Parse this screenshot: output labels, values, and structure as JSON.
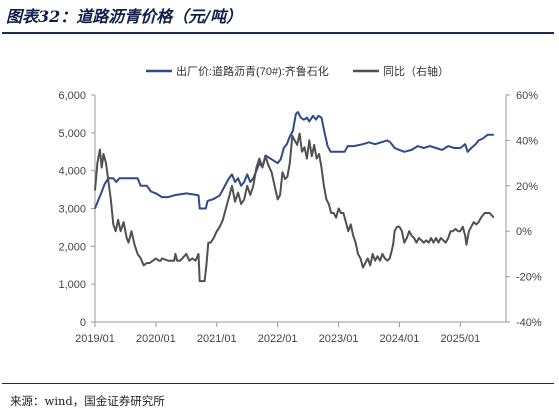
{
  "title": "图表32：道路沥青价格（元/吨）",
  "source": "来源：wind，国金证券研究所",
  "chart_data": {
    "type": "line",
    "title": "图表32：道路沥青价格（元/吨）",
    "xlabel": "",
    "ylabel": "",
    "y2label": "",
    "x_ticks": [
      "2019/01",
      "2020/01",
      "2021/01",
      "2022/01",
      "2023/01",
      "2024/01",
      "2025/01"
    ],
    "x_range": [
      2019.0,
      2025.75
    ],
    "ylim": [
      0,
      6000
    ],
    "y_ticks": [
      "0",
      "1,000",
      "2,000",
      "3,000",
      "4,000",
      "5,000",
      "6,000"
    ],
    "y2lim": [
      -40,
      60
    ],
    "y2_ticks": [
      "-40%",
      "-20%",
      "0%",
      "20%",
      "40%",
      "60%"
    ],
    "grid": false,
    "legend_position": "top",
    "series": [
      {
        "name": "出厂价:道路沥青(70#):齐鲁石化",
        "axis": "left",
        "color": "#2e4a8b",
        "points": [
          [
            2019.0,
            3000
          ],
          [
            2019.05,
            3200
          ],
          [
            2019.1,
            3400
          ],
          [
            2019.16,
            3650
          ],
          [
            2019.22,
            3800
          ],
          [
            2019.3,
            3800
          ],
          [
            2019.35,
            3700
          ],
          [
            2019.4,
            3800
          ],
          [
            2019.6,
            3800
          ],
          [
            2019.7,
            3800
          ],
          [
            2019.75,
            3600
          ],
          [
            2019.85,
            3600
          ],
          [
            2019.92,
            3450
          ],
          [
            2020.0,
            3400
          ],
          [
            2020.1,
            3300
          ],
          [
            2020.2,
            3300
          ],
          [
            2020.3,
            3350
          ],
          [
            2020.5,
            3400
          ],
          [
            2020.7,
            3350
          ],
          [
            2020.72,
            3000
          ],
          [
            2020.82,
            3000
          ],
          [
            2020.85,
            3200
          ],
          [
            2020.95,
            3250
          ],
          [
            2021.05,
            3350
          ],
          [
            2021.1,
            3500
          ],
          [
            2021.15,
            3650
          ],
          [
            2021.2,
            3800
          ],
          [
            2021.25,
            3900
          ],
          [
            2021.3,
            3700
          ],
          [
            2021.35,
            3800
          ],
          [
            2021.4,
            3600
          ],
          [
            2021.45,
            3700
          ],
          [
            2021.5,
            3900
          ],
          [
            2021.55,
            3700
          ],
          [
            2021.6,
            3800
          ],
          [
            2021.65,
            4000
          ],
          [
            2021.7,
            4200
          ],
          [
            2021.75,
            4100
          ],
          [
            2021.8,
            4400
          ],
          [
            2021.9,
            4300
          ],
          [
            2022.0,
            4200
          ],
          [
            2022.05,
            4300
          ],
          [
            2022.1,
            4600
          ],
          [
            2022.15,
            4700
          ],
          [
            2022.2,
            4900
          ],
          [
            2022.25,
            5050
          ],
          [
            2022.3,
            5500
          ],
          [
            2022.33,
            5550
          ],
          [
            2022.38,
            5400
          ],
          [
            2022.43,
            5350
          ],
          [
            2022.48,
            5400
          ],
          [
            2022.52,
            5300
          ],
          [
            2022.58,
            5450
          ],
          [
            2022.63,
            5350
          ],
          [
            2022.67,
            5450
          ],
          [
            2022.72,
            5400
          ],
          [
            2022.77,
            5000
          ],
          [
            2022.82,
            4650
          ],
          [
            2022.87,
            4500
          ],
          [
            2022.92,
            4500
          ],
          [
            2023.0,
            4500
          ],
          [
            2023.1,
            4500
          ],
          [
            2023.15,
            4650
          ],
          [
            2023.25,
            4650
          ],
          [
            2023.4,
            4700
          ],
          [
            2023.5,
            4750
          ],
          [
            2023.6,
            4700
          ],
          [
            2023.7,
            4750
          ],
          [
            2023.8,
            4800
          ],
          [
            2023.85,
            4750
          ],
          [
            2023.92,
            4600
          ],
          [
            2024.0,
            4550
          ],
          [
            2024.08,
            4500
          ],
          [
            2024.2,
            4550
          ],
          [
            2024.3,
            4650
          ],
          [
            2024.4,
            4600
          ],
          [
            2024.5,
            4650
          ],
          [
            2024.6,
            4600
          ],
          [
            2024.7,
            4550
          ],
          [
            2024.8,
            4650
          ],
          [
            2024.9,
            4600
          ],
          [
            2025.0,
            4600
          ],
          [
            2025.08,
            4700
          ],
          [
            2025.12,
            4500
          ],
          [
            2025.18,
            4600
          ],
          [
            2025.25,
            4700
          ],
          [
            2025.3,
            4800
          ],
          [
            2025.37,
            4850
          ],
          [
            2025.45,
            4950
          ],
          [
            2025.55,
            4950
          ]
        ]
      },
      {
        "name": "同比（右轴）",
        "axis": "right",
        "color": "#505050",
        "points": [
          [
            2019.0,
            18
          ],
          [
            2019.04,
            30
          ],
          [
            2019.08,
            36
          ],
          [
            2019.11,
            28
          ],
          [
            2019.14,
            34
          ],
          [
            2019.18,
            30
          ],
          [
            2019.22,
            22
          ],
          [
            2019.26,
            14
          ],
          [
            2019.3,
            3
          ],
          [
            2019.34,
            0
          ],
          [
            2019.38,
            5
          ],
          [
            2019.42,
            0
          ],
          [
            2019.47,
            4
          ],
          [
            2019.52,
            -3
          ],
          [
            2019.55,
            -5
          ],
          [
            2019.6,
            0
          ],
          [
            2019.65,
            -6
          ],
          [
            2019.7,
            -10
          ],
          [
            2019.75,
            -12
          ],
          [
            2019.8,
            -15
          ],
          [
            2019.85,
            -14
          ],
          [
            2019.9,
            -14
          ],
          [
            2019.95,
            -13
          ],
          [
            2020.0,
            -12
          ],
          [
            2020.05,
            -13
          ],
          [
            2020.08,
            -13
          ],
          [
            2020.1,
            -12
          ],
          [
            2020.2,
            -13
          ],
          [
            2020.3,
            -13
          ],
          [
            2020.32,
            -10
          ],
          [
            2020.35,
            -13
          ],
          [
            2020.4,
            -13
          ],
          [
            2020.5,
            -10
          ],
          [
            2020.55,
            -13
          ],
          [
            2020.6,
            -12
          ],
          [
            2020.65,
            -13
          ],
          [
            2020.7,
            -10
          ],
          [
            2020.72,
            -22
          ],
          [
            2020.8,
            -22
          ],
          [
            2020.83,
            -15
          ],
          [
            2020.86,
            -5
          ],
          [
            2020.9,
            -5
          ],
          [
            2020.95,
            -3
          ],
          [
            2021.0,
            0
          ],
          [
            2021.05,
            2
          ],
          [
            2021.1,
            5
          ],
          [
            2021.15,
            10
          ],
          [
            2021.2,
            15
          ],
          [
            2021.25,
            20
          ],
          [
            2021.3,
            13
          ],
          [
            2021.35,
            17
          ],
          [
            2021.4,
            12
          ],
          [
            2021.45,
            14
          ],
          [
            2021.5,
            20
          ],
          [
            2021.55,
            16
          ],
          [
            2021.6,
            20
          ],
          [
            2021.65,
            28
          ],
          [
            2021.7,
            32
          ],
          [
            2021.75,
            28
          ],
          [
            2021.8,
            33
          ],
          [
            2021.85,
            29
          ],
          [
            2021.9,
            26
          ],
          [
            2021.95,
            20
          ],
          [
            2022.0,
            14
          ],
          [
            2022.04,
            16
          ],
          [
            2022.08,
            26
          ],
          [
            2022.12,
            23
          ],
          [
            2022.16,
            24
          ],
          [
            2022.2,
            30
          ],
          [
            2022.24,
            42
          ],
          [
            2022.28,
            40
          ],
          [
            2022.32,
            38
          ],
          [
            2022.36,
            43
          ],
          [
            2022.4,
            35
          ],
          [
            2022.44,
            37
          ],
          [
            2022.48,
            32
          ],
          [
            2022.52,
            40
          ],
          [
            2022.56,
            33
          ],
          [
            2022.6,
            38
          ],
          [
            2022.64,
            32
          ],
          [
            2022.68,
            34
          ],
          [
            2022.72,
            28
          ],
          [
            2022.76,
            20
          ],
          [
            2022.8,
            14
          ],
          [
            2022.84,
            12
          ],
          [
            2022.88,
            8
          ],
          [
            2022.92,
            8
          ],
          [
            2022.96,
            6
          ],
          [
            2023.0,
            10
          ],
          [
            2023.04,
            8
          ],
          [
            2023.08,
            8
          ],
          [
            2023.12,
            4
          ],
          [
            2023.16,
            0
          ],
          [
            2023.2,
            3
          ],
          [
            2023.24,
            -2
          ],
          [
            2023.28,
            -5
          ],
          [
            2023.32,
            -10
          ],
          [
            2023.36,
            -12
          ],
          [
            2023.4,
            -16
          ],
          [
            2023.44,
            -14
          ],
          [
            2023.48,
            -12
          ],
          [
            2023.52,
            -15
          ],
          [
            2023.56,
            -10
          ],
          [
            2023.6,
            -13
          ],
          [
            2023.64,
            -11
          ],
          [
            2023.68,
            -13
          ],
          [
            2023.72,
            -10
          ],
          [
            2023.76,
            -12
          ],
          [
            2023.8,
            -13
          ],
          [
            2023.84,
            -12
          ],
          [
            2023.88,
            -8
          ],
          [
            2023.9,
            -5
          ],
          [
            2023.92,
            0
          ],
          [
            2023.96,
            2
          ],
          [
            2024.0,
            2
          ],
          [
            2024.04,
            0
          ],
          [
            2024.08,
            -5
          ],
          [
            2024.12,
            -3
          ],
          [
            2024.16,
            0
          ],
          [
            2024.2,
            -2
          ],
          [
            2024.24,
            -3
          ],
          [
            2024.28,
            -5
          ],
          [
            2024.32,
            -3
          ],
          [
            2024.36,
            -4
          ],
          [
            2024.4,
            -5
          ],
          [
            2024.44,
            -4
          ],
          [
            2024.48,
            -5
          ],
          [
            2024.52,
            -3
          ],
          [
            2024.56,
            -5
          ],
          [
            2024.6,
            -3
          ],
          [
            2024.64,
            -5
          ],
          [
            2024.68,
            -3
          ],
          [
            2024.72,
            -4
          ],
          [
            2024.76,
            -5
          ],
          [
            2024.8,
            -3
          ],
          [
            2024.84,
            0
          ],
          [
            2024.88,
            0
          ],
          [
            2024.92,
            1
          ],
          [
            2024.96,
            0
          ],
          [
            2025.0,
            0
          ],
          [
            2025.04,
            2
          ],
          [
            2025.08,
            -2
          ],
          [
            2025.1,
            -6
          ],
          [
            2025.14,
            0
          ],
          [
            2025.18,
            2
          ],
          [
            2025.22,
            4
          ],
          [
            2025.26,
            3
          ],
          [
            2025.3,
            4
          ],
          [
            2025.34,
            6
          ],
          [
            2025.4,
            8
          ],
          [
            2025.48,
            8
          ],
          [
            2025.55,
            6
          ]
        ]
      }
    ]
  }
}
